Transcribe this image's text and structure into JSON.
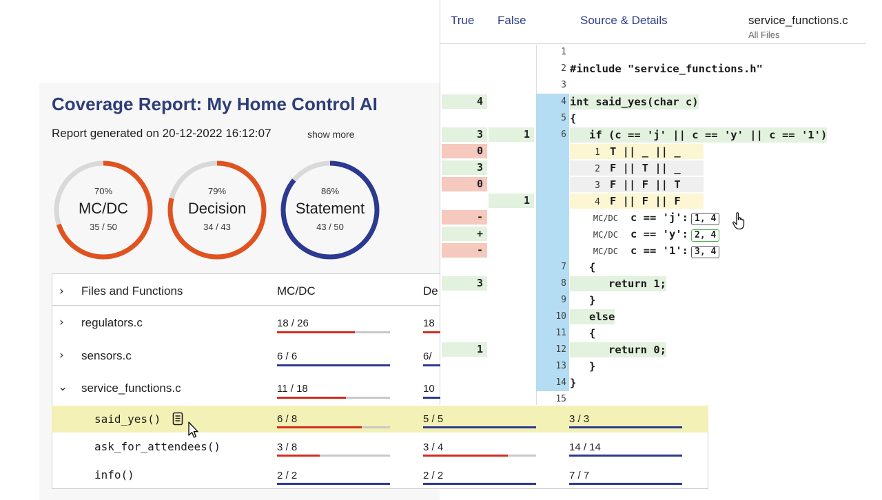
{
  "source": {
    "headers": {
      "true": "True",
      "false": "False",
      "details": "Source & Details"
    },
    "file": {
      "name": "service_functions.c",
      "sub": "All Files"
    },
    "lines": [
      {
        "n": "1",
        "code": ""
      },
      {
        "n": "2",
        "code": "#include \"service_functions.h\""
      },
      {
        "n": "3",
        "code": ""
      },
      {
        "n": "4",
        "code": "int said_yes(char c)",
        "true": "4"
      },
      {
        "n": "5",
        "code": "{"
      },
      {
        "n": "6",
        "code": "   if (c == 'j' || c == 'y' || c == '1')",
        "true": "3",
        "false": "1"
      },
      {
        "n": "7",
        "code": "   {"
      },
      {
        "n": "8",
        "code": "      return 1;",
        "true": "3"
      },
      {
        "n": "9",
        "code": "   }"
      },
      {
        "n": "10",
        "code": "   else"
      },
      {
        "n": "11",
        "code": "   {"
      },
      {
        "n": "12",
        "code": "      return 0;",
        "true": "1"
      },
      {
        "n": "13",
        "code": "   }"
      },
      {
        "n": "14",
        "code": "}"
      },
      {
        "n": "15",
        "code": ""
      }
    ],
    "conditions": [
      {
        "n": "1",
        "expr": "T || _ || _",
        "true": "0"
      },
      {
        "n": "2",
        "expr": "F || T || _",
        "true": "3"
      },
      {
        "n": "3",
        "expr": "F || F || T",
        "true": "0"
      },
      {
        "n": "4",
        "expr": "F || F || F",
        "false": "1"
      }
    ],
    "mcdc": [
      {
        "label": "MC/DC",
        "expr": "c == 'j':",
        "pair": "1, 4",
        "mark": "-"
      },
      {
        "label": "MC/DC",
        "expr": "c == 'y':",
        "pair": "2, 4",
        "mark": "+"
      },
      {
        "label": "MC/DC",
        "expr": "c == '1':",
        "pair": "3, 4",
        "mark": "-"
      }
    ]
  },
  "report": {
    "title": "Coverage Report: My Home Control AI",
    "generated": "Report generated on 20-12-2022 16:12:07",
    "show_more": "show more",
    "gauges": [
      {
        "pct": "70%",
        "name": "MC/DC",
        "frac": "35 / 50",
        "value": 0.7,
        "color": "#e0521f"
      },
      {
        "pct": "79%",
        "name": "Decision",
        "frac": "34 / 43",
        "value": 0.79,
        "color": "#e0521f"
      },
      {
        "pct": "86%",
        "name": "Statement",
        "frac": "43 / 50",
        "value": 0.86,
        "color": "#2b3990"
      }
    ],
    "table": {
      "headers": {
        "files": "Files and Functions",
        "mcdc": "MC/DC",
        "decision": "De"
      },
      "files": [
        {
          "name": "regulators.c",
          "mcdc": "18 / 26",
          "mcdc_v": 0.69,
          "dec": "18",
          "mcdc_color": "red"
        },
        {
          "name": "sensors.c",
          "mcdc": "6 / 6",
          "mcdc_v": 1.0,
          "dec": "6/",
          "mcdc_color": "blue"
        },
        {
          "name": "service_functions.c",
          "mcdc": "11 / 18",
          "mcdc_v": 0.61,
          "dec": "10",
          "mcdc_color": "red"
        }
      ],
      "functions": [
        {
          "name": "said_yes()",
          "mcdc": "6 / 8",
          "mcdc_v": 0.75,
          "dec": "5 / 5",
          "dec_v": 1.0,
          "stmt": "3 / 3",
          "stmt_v": 1.0
        },
        {
          "name": "ask_for_attendees()",
          "mcdc": "3 / 8",
          "mcdc_v": 0.375,
          "dec": "3 / 4",
          "dec_v": 0.75,
          "stmt": "14 / 14",
          "stmt_v": 1.0
        },
        {
          "name": "info()",
          "mcdc": "2 / 2",
          "mcdc_v": 1.0,
          "dec": "2 / 2",
          "dec_v": 1.0,
          "stmt": "7 / 7",
          "stmt_v": 1.0
        }
      ]
    }
  },
  "icons": {
    "expand": "chevron-right-icon",
    "collapse": "chevron-down-icon",
    "doc": "document-icon"
  }
}
